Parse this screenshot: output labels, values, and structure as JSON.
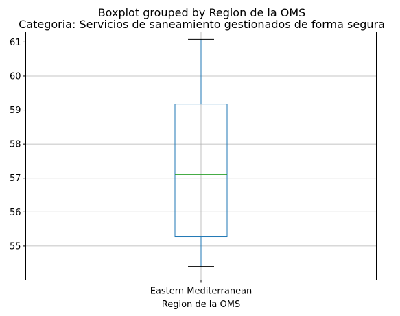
{
  "chart_data": {
    "type": "boxplot",
    "suptitle": "Boxplot grouped by Region de la OMS",
    "title": "Categoria: Servicios de saneamiento gestionados de forma segura",
    "xlabel": "Region de la OMS",
    "ylabel": "",
    "ylim": [
      54.0,
      61.3
    ],
    "yticks": [
      55,
      56,
      57,
      58,
      59,
      60,
      61
    ],
    "grid": true,
    "categories": [
      "Eastern Mediterranean"
    ],
    "boxes": [
      {
        "category": "Eastern Mediterranean",
        "whisker_low": 54.4,
        "q1": 55.27,
        "median": 57.1,
        "q3": 59.18,
        "whisker_high": 61.08
      }
    ],
    "colors": {
      "box": "#1f77b4",
      "median": "#2ca02c",
      "whisker_cap": "#000000",
      "grid": "#b0b0b0"
    }
  }
}
